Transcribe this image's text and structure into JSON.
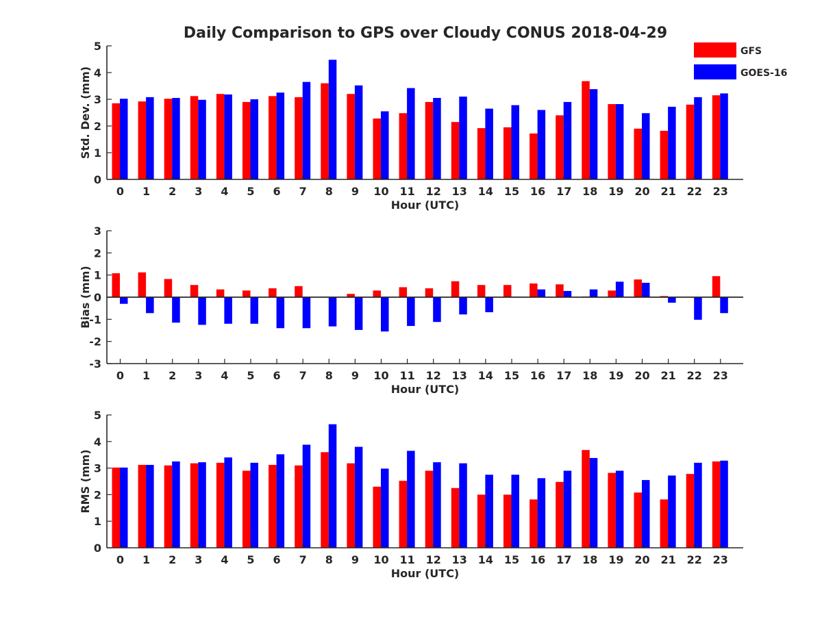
{
  "title": "Daily Comparison to GPS over Cloudy CONUS 2018-04-29",
  "colors": {
    "GFS": "#ff0000",
    "GOES-16": "#0000ff",
    "axis": "#262626"
  },
  "legend": {
    "placement": "top-right",
    "entries": [
      "GFS",
      "GOES-16"
    ]
  },
  "chart_data": [
    {
      "type": "bar",
      "xlabel": "Hour (UTC)",
      "ylabel": "Std. Dev. (mm)",
      "ylim": [
        0,
        5
      ],
      "yticks": [
        0,
        1,
        2,
        3,
        4,
        5
      ],
      "categories": [
        "0",
        "1",
        "2",
        "3",
        "4",
        "5",
        "6",
        "7",
        "8",
        "9",
        "10",
        "11",
        "12",
        "13",
        "14",
        "15",
        "16",
        "17",
        "18",
        "19",
        "20",
        "21",
        "22",
        "23"
      ],
      "series": [
        {
          "name": "GFS",
          "values": [
            2.85,
            2.92,
            3.02,
            3.12,
            3.2,
            2.9,
            3.12,
            3.08,
            3.6,
            3.2,
            2.28,
            2.48,
            2.9,
            2.15,
            1.92,
            1.95,
            1.72,
            2.4,
            3.68,
            2.82,
            1.9,
            1.82,
            2.8,
            3.15
          ]
        },
        {
          "name": "GOES-16",
          "values": [
            3.02,
            3.08,
            3.05,
            2.98,
            3.18,
            3.0,
            3.25,
            3.65,
            4.48,
            3.52,
            2.55,
            3.42,
            3.05,
            3.1,
            2.65,
            2.78,
            2.6,
            2.9,
            3.38,
            2.82,
            2.48,
            2.72,
            3.08,
            3.22
          ]
        }
      ]
    },
    {
      "type": "bar",
      "xlabel": "Hour (UTC)",
      "ylabel": "Bias (mm)",
      "ylim": [
        -3,
        3
      ],
      "yticks": [
        -3,
        -2,
        -1,
        0,
        1,
        2,
        3
      ],
      "categories": [
        "0",
        "1",
        "2",
        "3",
        "4",
        "5",
        "6",
        "7",
        "8",
        "9",
        "10",
        "11",
        "12",
        "13",
        "14",
        "15",
        "16",
        "17",
        "18",
        "19",
        "20",
        "21",
        "22",
        "23"
      ],
      "series": [
        {
          "name": "GFS",
          "values": [
            1.08,
            1.12,
            0.82,
            0.55,
            0.35,
            0.3,
            0.4,
            0.5,
            0.02,
            0.15,
            0.3,
            0.45,
            0.4,
            0.72,
            0.55,
            0.55,
            0.62,
            0.58,
            0.03,
            0.3,
            0.8,
            0.05,
            0.0,
            0.95
          ]
        },
        {
          "name": "GOES-16",
          "values": [
            -0.3,
            -0.72,
            -1.15,
            -1.25,
            -1.2,
            -1.2,
            -1.4,
            -1.4,
            -1.32,
            -1.48,
            -1.55,
            -1.3,
            -1.12,
            -0.78,
            -0.68,
            0.02,
            0.35,
            0.28,
            0.35,
            0.7,
            0.65,
            -0.25,
            -1.02,
            -0.72
          ]
        }
      ]
    },
    {
      "type": "bar",
      "xlabel": "Hour (UTC)",
      "ylabel": "RMS (mm)",
      "ylim": [
        0,
        5
      ],
      "yticks": [
        0,
        1,
        2,
        3,
        4,
        5
      ],
      "categories": [
        "0",
        "1",
        "2",
        "3",
        "4",
        "5",
        "6",
        "7",
        "8",
        "9",
        "10",
        "11",
        "12",
        "13",
        "14",
        "15",
        "16",
        "17",
        "18",
        "19",
        "20",
        "21",
        "22",
        "23"
      ],
      "series": [
        {
          "name": "GFS",
          "values": [
            3.02,
            3.12,
            3.1,
            3.18,
            3.2,
            2.9,
            3.12,
            3.1,
            3.6,
            3.18,
            2.3,
            2.52,
            2.9,
            2.25,
            2.0,
            2.0,
            1.82,
            2.48,
            3.68,
            2.82,
            2.08,
            1.82,
            2.78,
            3.25
          ]
        },
        {
          "name": "GOES-16",
          "values": [
            3.02,
            3.12,
            3.25,
            3.22,
            3.4,
            3.2,
            3.52,
            3.88,
            4.65,
            3.8,
            2.98,
            3.65,
            3.22,
            3.18,
            2.75,
            2.75,
            2.62,
            2.9,
            3.38,
            2.9,
            2.55,
            2.72,
            3.2,
            3.28
          ]
        }
      ]
    }
  ]
}
